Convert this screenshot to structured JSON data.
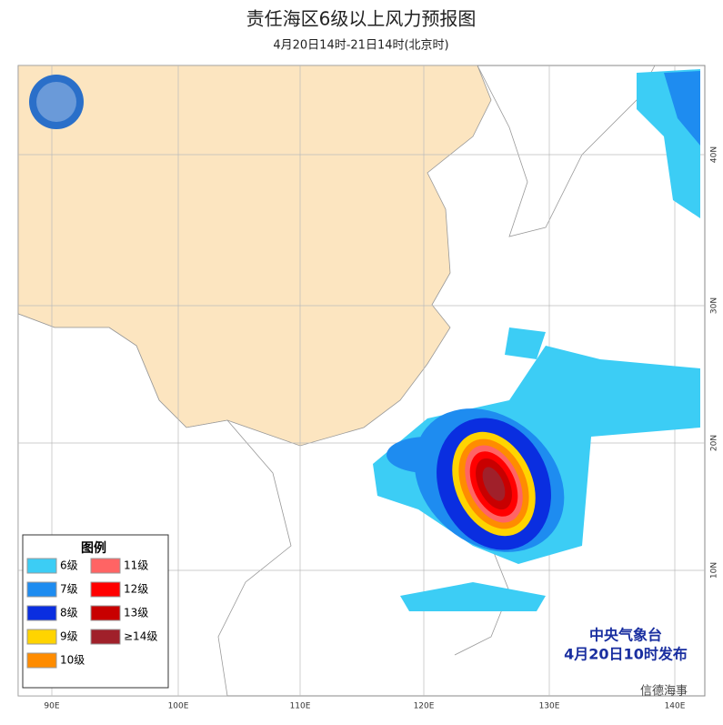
{
  "header": {
    "title": "责任海区6级以上风力预报图",
    "subtitle": "4月20日14时-21日14时(北京时)"
  },
  "map": {
    "lon_labels": [
      "90E",
      "100E",
      "110E",
      "120E",
      "130E",
      "140E"
    ],
    "lat_labels": [
      "10N",
      "20N",
      "30N",
      "40N"
    ]
  },
  "legend": {
    "title": "图例",
    "items": [
      {
        "label": "6级",
        "color": "#3ccdf5"
      },
      {
        "label": "7级",
        "color": "#1e8cf0"
      },
      {
        "label": "8级",
        "color": "#0a2ee0"
      },
      {
        "label": "9级",
        "color": "#ffd400"
      },
      {
        "label": "10级",
        "color": "#ff8c00"
      },
      {
        "label": "11级",
        "color": "#ff6464"
      },
      {
        "label": "12级",
        "color": "#ff0000"
      },
      {
        "label": "13级",
        "color": "#c80000"
      },
      {
        "label": "≥14级",
        "color": "#a0202a"
      }
    ]
  },
  "issuer": {
    "agency": "中央气象台",
    "time": "4月20日10时发布"
  },
  "watermark": "信德海事"
}
